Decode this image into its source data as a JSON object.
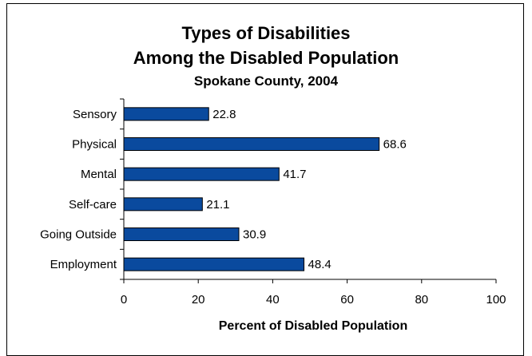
{
  "chart_data": {
    "type": "bar",
    "orientation": "horizontal",
    "title": "Types of Disabilities",
    "title_line2": "Among the Disabled Population",
    "subtitle": "Spokane County, 2004",
    "categories": [
      "Sensory",
      "Physical",
      "Mental",
      "Self-care",
      "Going Outside",
      "Employment"
    ],
    "values": [
      22.8,
      68.6,
      41.7,
      21.1,
      30.9,
      48.4
    ],
    "data_labels": [
      "22.8",
      "68.6",
      "41.7",
      "21.1",
      "30.9",
      "48.4"
    ],
    "xlabel": "Percent of Disabled Population",
    "ylabel": "",
    "xlim": [
      0,
      100
    ],
    "x_ticks": [
      0,
      20,
      40,
      60,
      80,
      100
    ],
    "x_tick_labels": [
      "0",
      "20",
      "40",
      "60",
      "80",
      "100"
    ],
    "grid": false,
    "legend": "none",
    "bar_color": "#0a4a9e"
  }
}
